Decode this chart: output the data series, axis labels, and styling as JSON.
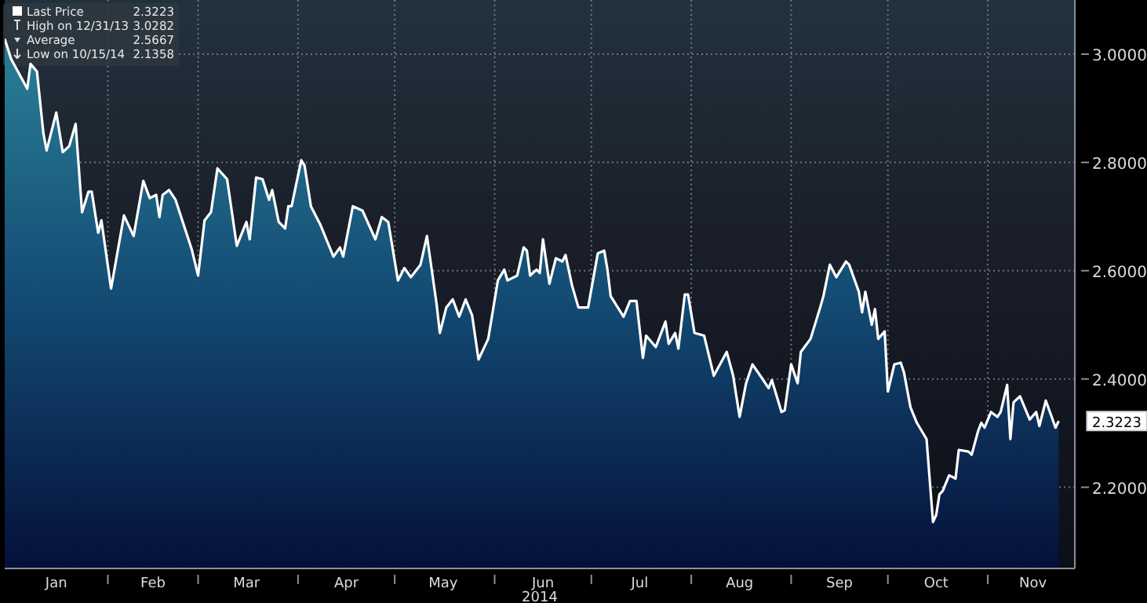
{
  "chart_data": {
    "type": "area",
    "xlabel": "2014",
    "annotations": [
      "Last Price 2.3223",
      "High on 12/31/13 3.0282",
      "Average 2.5667",
      "Low on 10/15/14 2.1358",
      {
        "text": "2.3223",
        "x": "2014-11-23",
        "y": 2.3223
      }
    ],
    "series": [
      {
        "color": "#ffffff",
        "x": [
          "2013-12-31",
          "2014-01-02",
          "2014-01-07",
          "2014-01-08",
          "2014-01-10",
          "2014-01-12",
          "2014-01-13",
          "2014-01-16",
          "2014-01-18",
          "2014-01-20",
          "2014-01-22",
          "2014-01-24",
          "2014-01-26",
          "2014-01-27",
          "2014-01-29",
          "2014-01-30",
          "2014-02-02",
          "2014-02-06",
          "2014-02-09",
          "2014-02-12",
          "2014-02-14",
          "2014-02-16",
          "2014-02-17",
          "2014-02-18",
          "2014-02-20",
          "2014-02-22",
          "2014-02-27",
          "2014-03-01",
          "2014-03-03",
          "2014-03-05",
          "2014-03-07",
          "2014-03-10",
          "2014-03-13",
          "2014-03-16",
          "2014-03-17",
          "2014-03-19",
          "2014-03-21",
          "2014-03-23",
          "2014-03-24",
          "2014-03-26",
          "2014-03-28",
          "2014-03-29",
          "2014-03-30",
          "2014-04-02",
          "2014-04-03",
          "2014-04-05",
          "2014-04-08",
          "2014-04-12",
          "2014-04-14",
          "2014-04-15",
          "2014-04-18",
          "2014-04-21",
          "2014-04-25",
          "2014-04-27",
          "2014-04-29",
          "2014-05-02",
          "2014-05-04",
          "2014-05-06",
          "2014-05-09",
          "2014-05-11",
          "2014-05-14",
          "2014-05-15",
          "2014-05-17",
          "2014-05-19",
          "2014-05-21",
          "2014-05-23",
          "2014-05-25",
          "2014-05-27",
          "2014-05-30",
          "2014-06-02",
          "2014-06-04",
          "2014-06-05",
          "2014-06-08",
          "2014-06-10",
          "2014-06-11",
          "2014-06-12",
          "2014-06-14",
          "2014-06-15",
          "2014-06-16",
          "2014-06-18",
          "2014-06-20",
          "2014-06-22",
          "2014-06-23",
          "2014-06-25",
          "2014-06-27",
          "2014-06-30",
          "2014-07-03",
          "2014-07-05",
          "2014-07-06",
          "2014-07-07",
          "2014-07-11",
          "2014-07-13",
          "2014-07-15",
          "2014-07-17",
          "2014-07-18",
          "2014-07-21",
          "2014-07-24",
          "2014-07-25",
          "2014-07-27",
          "2014-07-28",
          "2014-07-30",
          "2014-07-31",
          "2014-08-02",
          "2014-08-05",
          "2014-08-08",
          "2014-08-12",
          "2014-08-14",
          "2014-08-16",
          "2014-08-18",
          "2014-08-20",
          "2014-08-23",
          "2014-08-25",
          "2014-08-26",
          "2014-08-29",
          "2014-08-30",
          "2014-09-01",
          "2014-09-03",
          "2014-09-04",
          "2014-09-07",
          "2014-09-10",
          "2014-09-11",
          "2014-09-13",
          "2014-09-15",
          "2014-09-18",
          "2014-09-19",
          "2014-09-22",
          "2014-09-23",
          "2014-09-24",
          "2014-09-26",
          "2014-09-27",
          "2014-09-28",
          "2014-09-30",
          "2014-10-01",
          "2014-10-03",
          "2014-10-05",
          "2014-10-06",
          "2014-10-08",
          "2014-10-10",
          "2014-10-13",
          "2014-10-15",
          "2014-10-16",
          "2014-10-17",
          "2014-10-18",
          "2014-10-20",
          "2014-10-22",
          "2014-10-23",
          "2014-10-26",
          "2014-10-27",
          "2014-10-29",
          "2014-10-30",
          "2014-10-31",
          "2014-11-02",
          "2014-11-04",
          "2014-11-05",
          "2014-11-07",
          "2014-11-08",
          "2014-11-09",
          "2014-11-11",
          "2014-11-14",
          "2014-11-16",
          "2014-11-17",
          "2014-11-19",
          "2014-11-21",
          "2014-11-22",
          "2014-11-23"
        ],
        "values": [
          3.0282,
          2.991,
          2.936,
          2.982,
          2.968,
          2.854,
          2.822,
          2.892,
          2.819,
          2.83,
          2.871,
          2.708,
          2.746,
          2.746,
          2.67,
          2.693,
          2.567,
          2.702,
          2.664,
          2.766,
          2.734,
          2.74,
          2.699,
          2.74,
          2.749,
          2.731,
          2.64,
          2.591,
          2.693,
          2.708,
          2.789,
          2.769,
          2.646,
          2.69,
          2.658,
          2.772,
          2.769,
          2.731,
          2.749,
          2.69,
          2.678,
          2.719,
          2.719,
          2.804,
          2.795,
          2.719,
          2.684,
          2.626,
          2.643,
          2.626,
          2.719,
          2.711,
          2.658,
          2.699,
          2.69,
          2.582,
          2.605,
          2.588,
          2.611,
          2.664,
          2.538,
          2.485,
          2.532,
          2.547,
          2.515,
          2.547,
          2.518,
          2.436,
          2.474,
          2.582,
          2.602,
          2.582,
          2.591,
          2.643,
          2.637,
          2.591,
          2.602,
          2.596,
          2.658,
          2.576,
          2.623,
          2.617,
          2.629,
          2.573,
          2.532,
          2.532,
          2.632,
          2.637,
          2.602,
          2.553,
          2.515,
          2.544,
          2.544,
          2.439,
          2.48,
          2.459,
          2.506,
          2.465,
          2.485,
          2.456,
          2.556,
          2.556,
          2.485,
          2.48,
          2.406,
          2.45,
          2.406,
          2.33,
          2.392,
          2.427,
          2.401,
          2.383,
          2.398,
          2.339,
          2.342,
          2.427,
          2.392,
          2.45,
          2.474,
          2.532,
          2.553,
          2.611,
          2.588,
          2.617,
          2.611,
          2.561,
          2.523,
          2.561,
          2.5,
          2.529,
          2.474,
          2.488,
          2.377,
          2.427,
          2.43,
          2.412,
          2.348,
          2.319,
          2.289,
          2.1358,
          2.149,
          2.187,
          2.193,
          2.222,
          2.216,
          2.269,
          2.266,
          2.26,
          2.304,
          2.319,
          2.31,
          2.339,
          2.33,
          2.339,
          2.389,
          2.289,
          2.357,
          2.368,
          2.325,
          2.339,
          2.313,
          2.36,
          2.327,
          2.31,
          2.3223
        ]
      }
    ],
    "xlim": [
      "2013-12-31",
      "2014-11-28"
    ],
    "xticks": [
      {
        "value": "2014-02-01",
        "label": null
      },
      {
        "value": "2014-03-01",
        "label": null
      },
      {
        "value": "2014-04-01",
        "label": null
      },
      {
        "value": "2014-05-01",
        "label": null
      },
      {
        "value": "2014-06-01",
        "label": null
      },
      {
        "value": "2014-07-01",
        "label": null
      },
      {
        "value": "2014-08-01",
        "label": null
      },
      {
        "value": "2014-09-01",
        "label": null
      },
      {
        "value": "2014-10-01",
        "label": null
      },
      {
        "value": "2014-11-01",
        "label": null
      },
      {
        "value": "2014-01-16",
        "label": "Jan"
      },
      {
        "value": "2014-02-15",
        "label": "Feb"
      },
      {
        "value": "2014-03-16",
        "label": "Mar"
      },
      {
        "value": "2014-04-16",
        "label": "Apr"
      },
      {
        "value": "2014-05-16",
        "label": "May"
      },
      {
        "value": "2014-06-16",
        "label": "Jun"
      },
      {
        "value": "2014-07-16",
        "label": "Jul"
      },
      {
        "value": "2014-08-16",
        "label": "Aug"
      },
      {
        "value": "2014-09-16",
        "label": "Sep"
      },
      {
        "value": "2014-10-16",
        "label": "Oct"
      },
      {
        "value": "2014-11-15",
        "label": "Nov"
      }
    ],
    "ylim": [
      2.05,
      3.1
    ],
    "yticks": [
      {
        "value": 2.2,
        "label": "2.2000"
      },
      {
        "value": 2.4,
        "label": "2.4000"
      },
      {
        "value": 2.6,
        "label": "2.6000"
      },
      {
        "value": 2.8,
        "label": "2.8000"
      },
      {
        "value": 3.0,
        "label": "3.0000"
      }
    ],
    "grid": true
  }
}
